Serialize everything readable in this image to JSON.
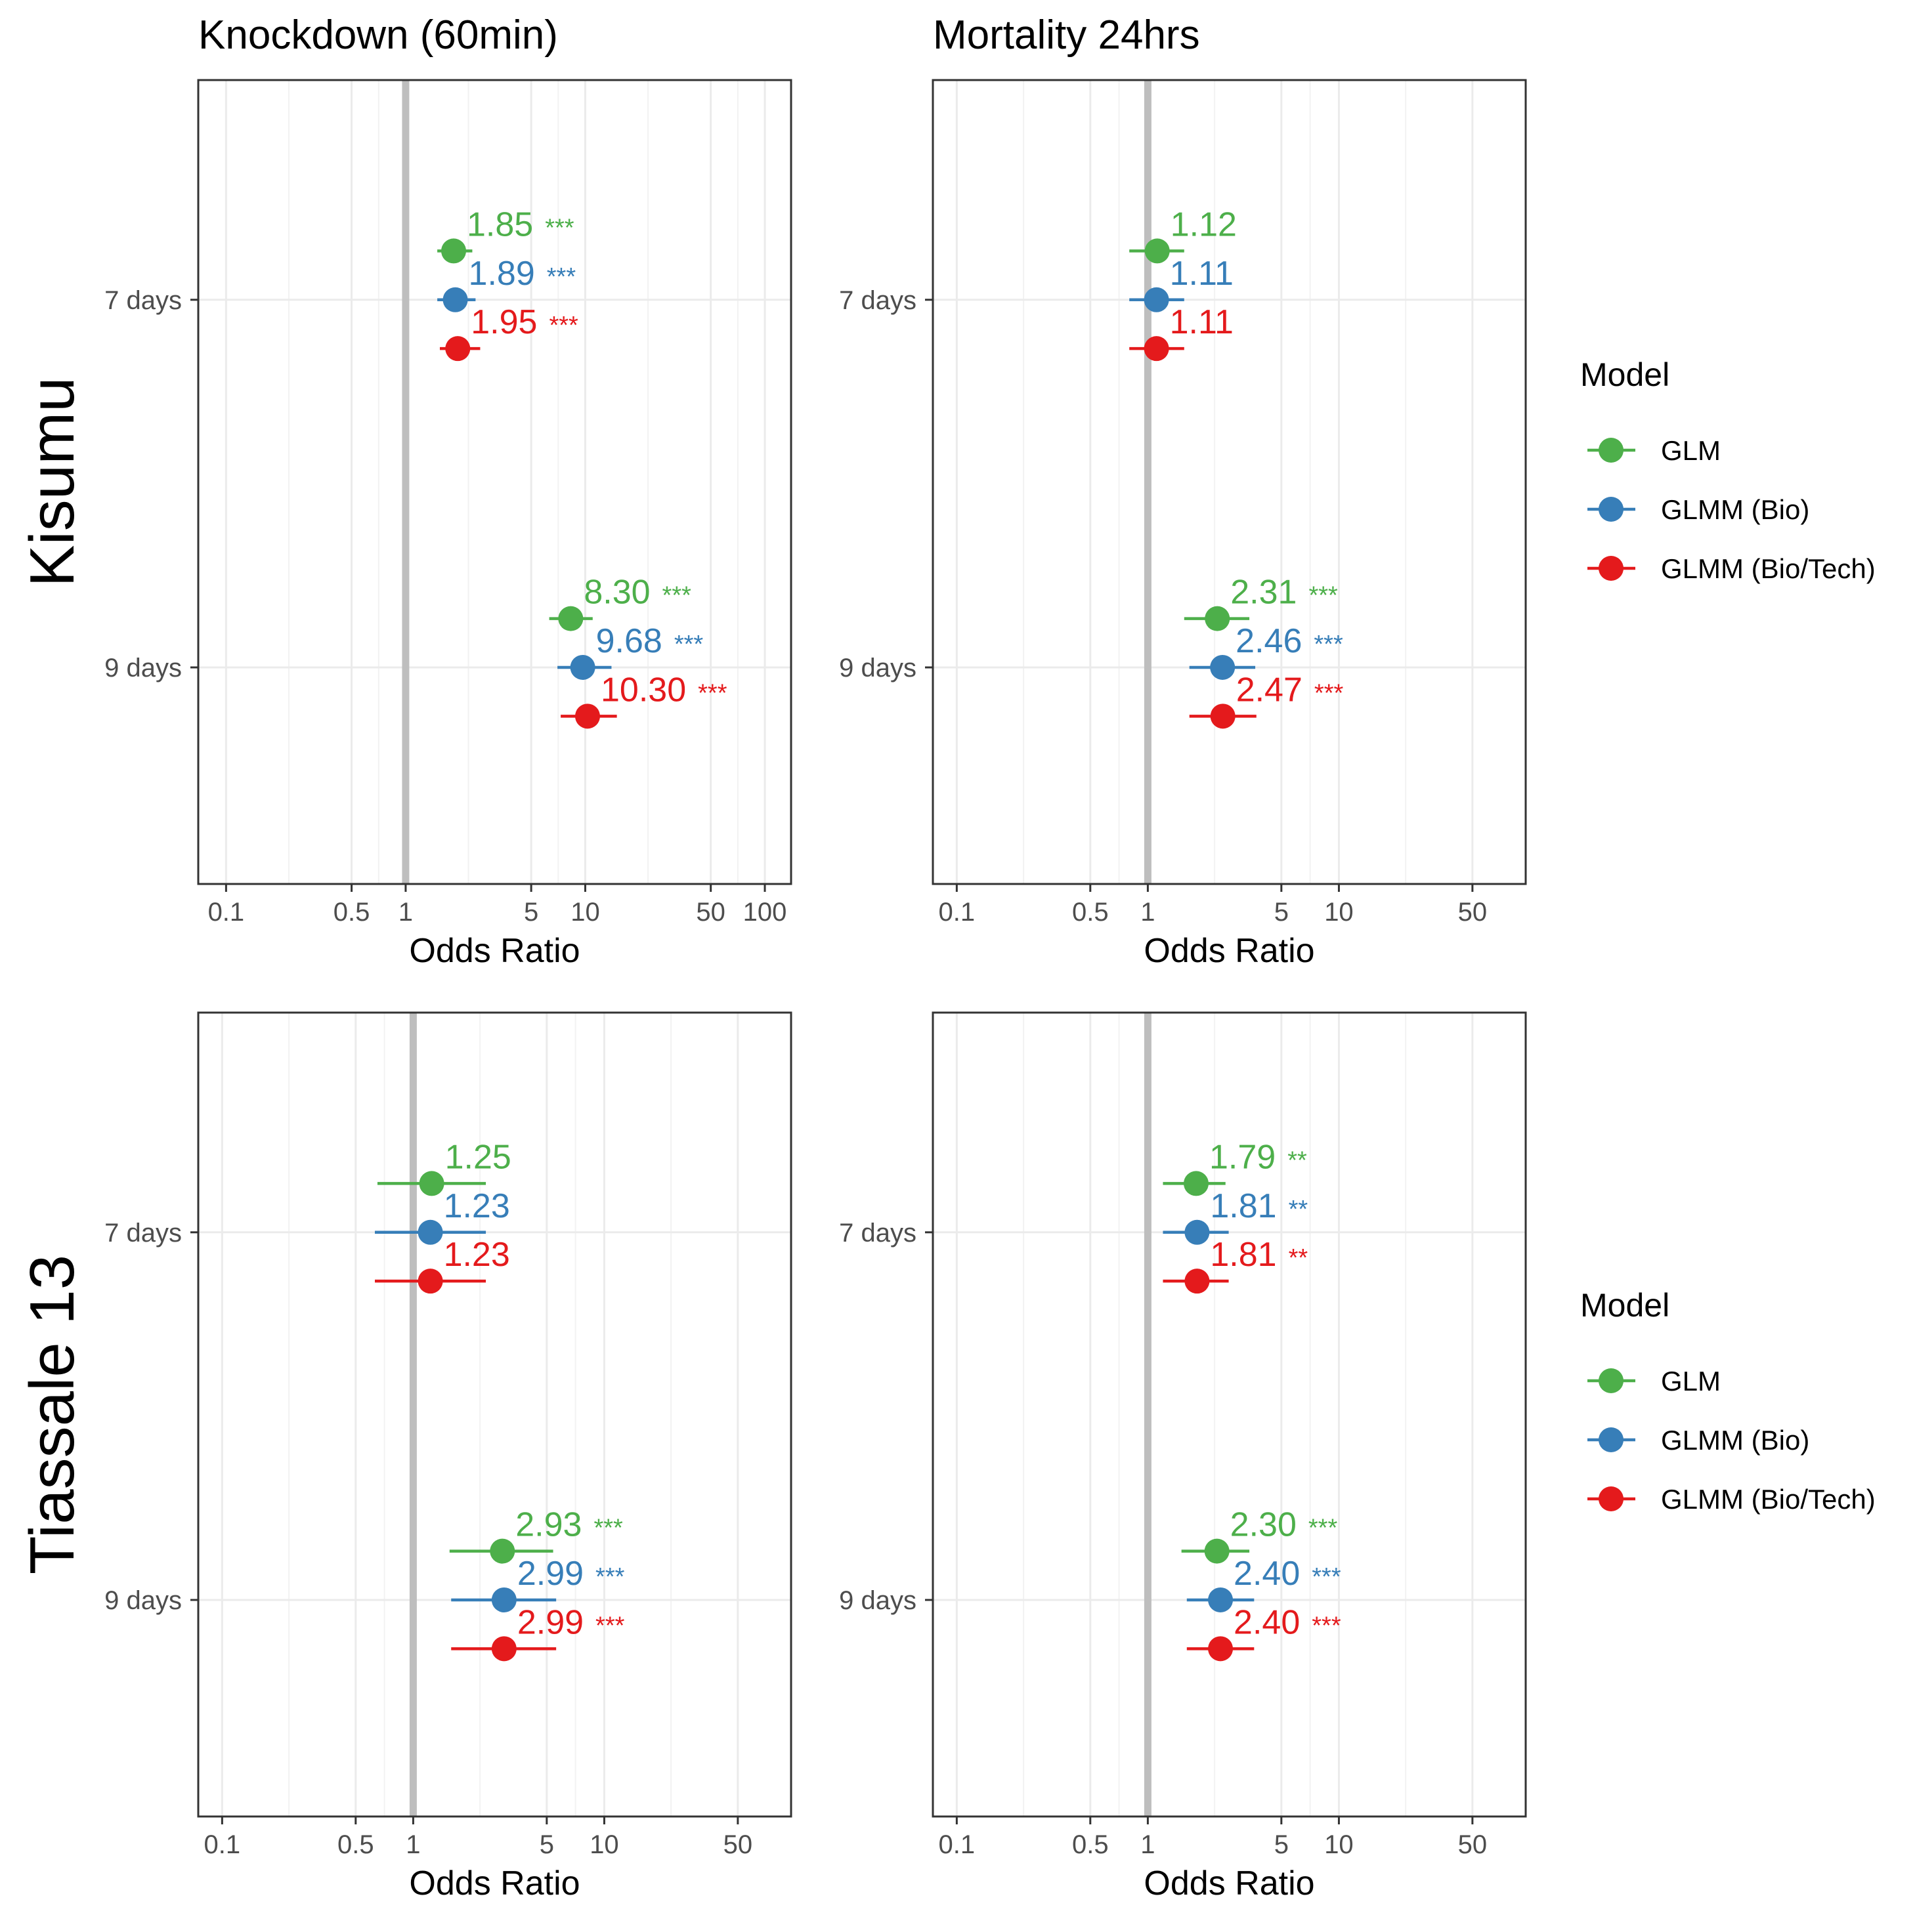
{
  "colors": {
    "GLM": "#4DAF4A",
    "GLMM (Bio)": "#377EB8",
    "GLMM (Bio/Tech)": "#E41A1C"
  },
  "legend": {
    "title": "Model",
    "items": [
      "GLM",
      "GLMM (Bio)",
      "GLMM (Bio/Tech)"
    ]
  },
  "chart_data": [
    {
      "type": "scatter",
      "title": "Knockdown (60min)",
      "row_label": "Kisumu",
      "xlabel": "Odds Ratio",
      "xscale": "log",
      "xlim": [
        0.07,
        140
      ],
      "xticks": [
        0.1,
        0.5,
        1,
        5,
        10,
        50,
        100
      ],
      "xtick_labels": [
        "0.1",
        "0.5",
        "1",
        "5",
        "10",
        "50",
        "100"
      ],
      "reference_line": 1,
      "categories": [
        "7 days",
        "9 days"
      ],
      "series": [
        {
          "name": "GLM",
          "values": [
            1.85,
            8.3
          ],
          "ci_low": [
            1.5,
            6.3
          ],
          "ci_high": [
            2.35,
            11.0
          ],
          "stars": [
            "***",
            "***"
          ]
        },
        {
          "name": "GLMM (Bio)",
          "values": [
            1.89,
            9.68
          ],
          "ci_low": [
            1.5,
            7.0
          ],
          "ci_high": [
            2.45,
            14.0
          ],
          "stars": [
            "***",
            "***"
          ]
        },
        {
          "name": "GLMM (Bio/Tech)",
          "values": [
            1.95,
            10.3
          ],
          "ci_low": [
            1.55,
            7.3
          ],
          "ci_high": [
            2.6,
            15.0
          ],
          "stars": [
            "***",
            "***"
          ]
        }
      ]
    },
    {
      "type": "scatter",
      "title": "Mortality 24hrs",
      "row_label": "",
      "xlabel": "Odds Ratio",
      "xscale": "log",
      "xlim": [
        0.075,
        95
      ],
      "xticks": [
        0.1,
        0.5,
        1,
        5,
        10,
        50
      ],
      "xtick_labels": [
        "0.1",
        "0.5",
        "1",
        "5",
        "10",
        "50"
      ],
      "reference_line": 1,
      "categories": [
        "7 days",
        "9 days"
      ],
      "series": [
        {
          "name": "GLM",
          "values": [
            1.12,
            2.31
          ],
          "ci_low": [
            0.8,
            1.55
          ],
          "ci_high": [
            1.55,
            3.4
          ],
          "stars": [
            "",
            "***"
          ]
        },
        {
          "name": "GLMM (Bio)",
          "values": [
            1.11,
            2.46
          ],
          "ci_low": [
            0.8,
            1.65
          ],
          "ci_high": [
            1.55,
            3.65
          ],
          "stars": [
            "",
            "***"
          ]
        },
        {
          "name": "GLMM (Bio/Tech)",
          "values": [
            1.11,
            2.47
          ],
          "ci_low": [
            0.8,
            1.65
          ],
          "ci_high": [
            1.55,
            3.7
          ],
          "stars": [
            "",
            "***"
          ]
        }
      ]
    },
    {
      "type": "scatter",
      "title": "",
      "row_label": "Tiassale 13",
      "xlabel": "Odds Ratio",
      "xscale": "log",
      "xlim": [
        0.075,
        95
      ],
      "xticks": [
        0.1,
        0.5,
        1,
        5,
        10,
        50
      ],
      "xtick_labels": [
        "0.1",
        "0.5",
        "1",
        "5",
        "10",
        "50"
      ],
      "reference_line": 1,
      "categories": [
        "7 days",
        "9 days"
      ],
      "series": [
        {
          "name": "GLM",
          "values": [
            1.25,
            2.93
          ],
          "ci_low": [
            0.65,
            1.55
          ],
          "ci_high": [
            2.4,
            5.4
          ],
          "stars": [
            "",
            "***"
          ]
        },
        {
          "name": "GLMM (Bio)",
          "values": [
            1.23,
            2.99
          ],
          "ci_low": [
            0.63,
            1.58
          ],
          "ci_high": [
            2.4,
            5.6
          ],
          "stars": [
            "",
            "***"
          ]
        },
        {
          "name": "GLMM (Bio/Tech)",
          "values": [
            1.23,
            2.99
          ],
          "ci_low": [
            0.63,
            1.58
          ],
          "ci_high": [
            2.4,
            5.6
          ],
          "stars": [
            "",
            "***"
          ]
        }
      ]
    },
    {
      "type": "scatter",
      "title": "",
      "row_label": "",
      "xlabel": "Odds Ratio",
      "xscale": "log",
      "xlim": [
        0.075,
        95
      ],
      "xticks": [
        0.1,
        0.5,
        1,
        5,
        10,
        50
      ],
      "xtick_labels": [
        "0.1",
        "0.5",
        "1",
        "5",
        "10",
        "50"
      ],
      "reference_line": 1,
      "categories": [
        "7 days",
        "9 days"
      ],
      "series": [
        {
          "name": "GLM",
          "values": [
            1.79,
            2.3
          ],
          "ci_low": [
            1.2,
            1.5
          ],
          "ci_high": [
            2.55,
            3.4
          ],
          "stars": [
            "**",
            "***"
          ]
        },
        {
          "name": "GLMM (Bio)",
          "values": [
            1.81,
            2.4
          ],
          "ci_low": [
            1.2,
            1.6
          ],
          "ci_high": [
            2.65,
            3.6
          ],
          "stars": [
            "**",
            "***"
          ]
        },
        {
          "name": "GLMM (Bio/Tech)",
          "values": [
            1.81,
            2.4
          ],
          "ci_low": [
            1.2,
            1.6
          ],
          "ci_high": [
            2.65,
            3.6
          ],
          "stars": [
            "**",
            "***"
          ]
        }
      ]
    }
  ]
}
